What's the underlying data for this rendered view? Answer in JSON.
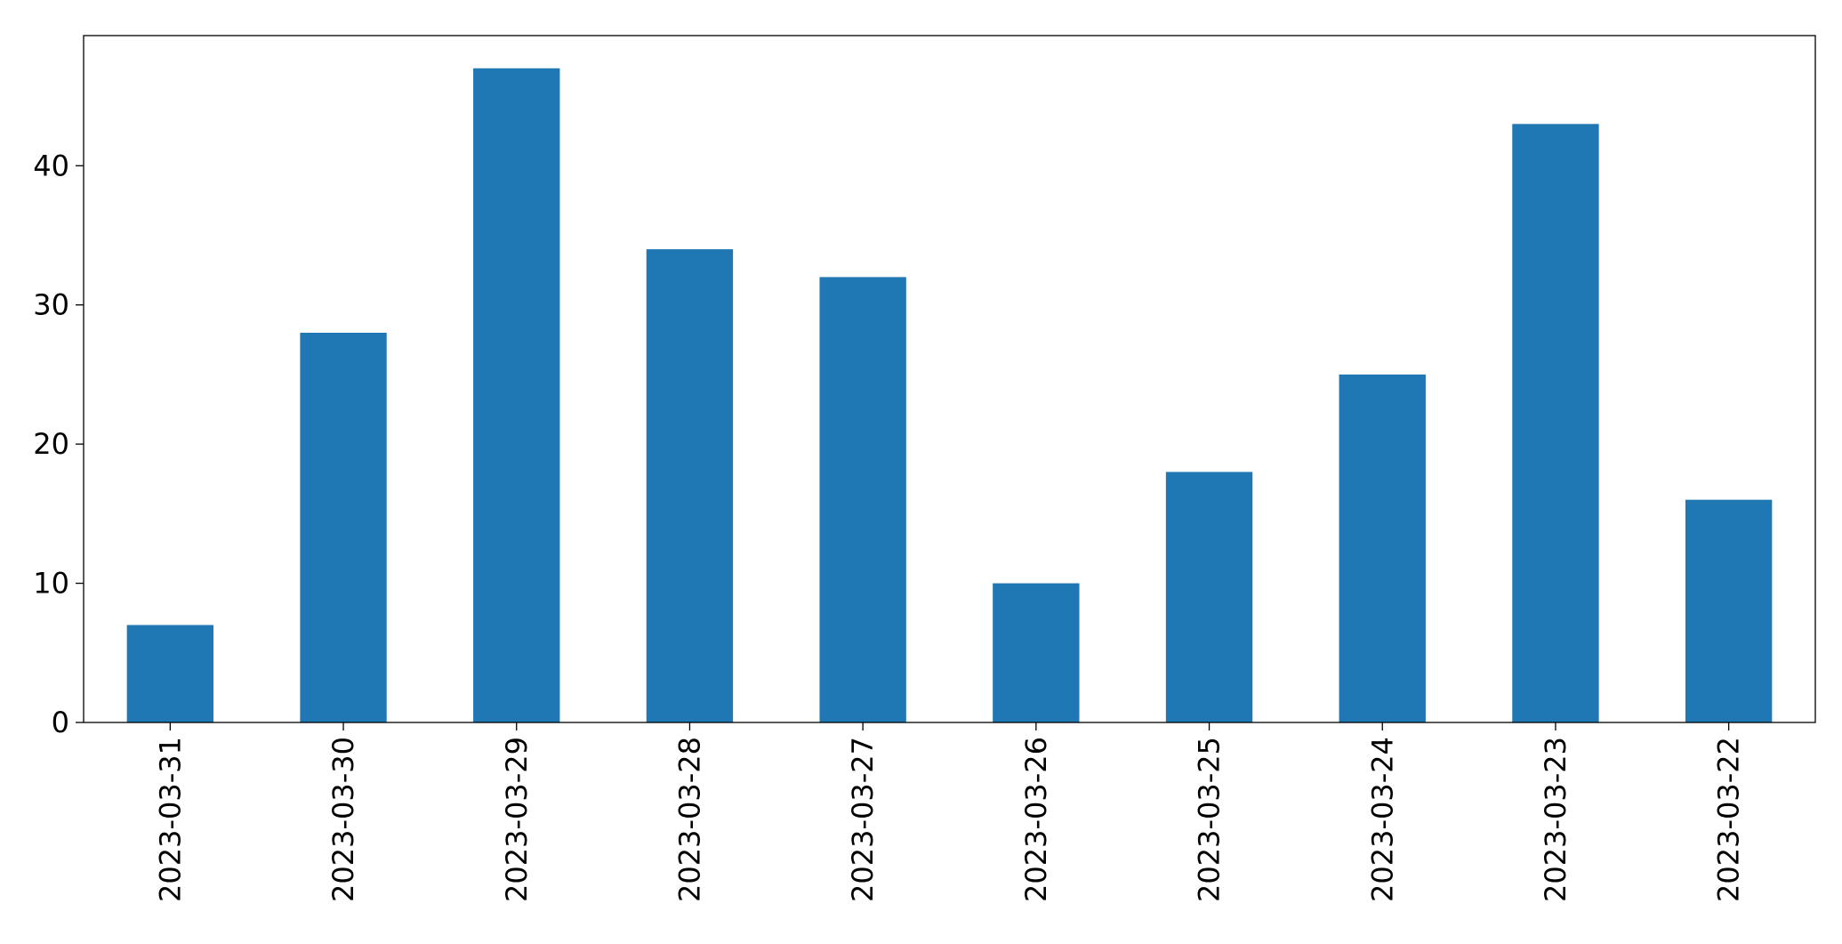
{
  "chart_data": {
    "type": "bar",
    "categories": [
      "2023-03-31",
      "2023-03-30",
      "2023-03-29",
      "2023-03-28",
      "2023-03-27",
      "2023-03-26",
      "2023-03-25",
      "2023-03-24",
      "2023-03-23",
      "2023-03-22"
    ],
    "values": [
      7,
      28,
      47,
      34,
      32,
      10,
      18,
      25,
      43,
      16
    ],
    "color": "#1f77b4",
    "ylim": [
      0,
      49.35
    ],
    "yticks": [
      0,
      10,
      20,
      30,
      40
    ],
    "grid": false
  }
}
